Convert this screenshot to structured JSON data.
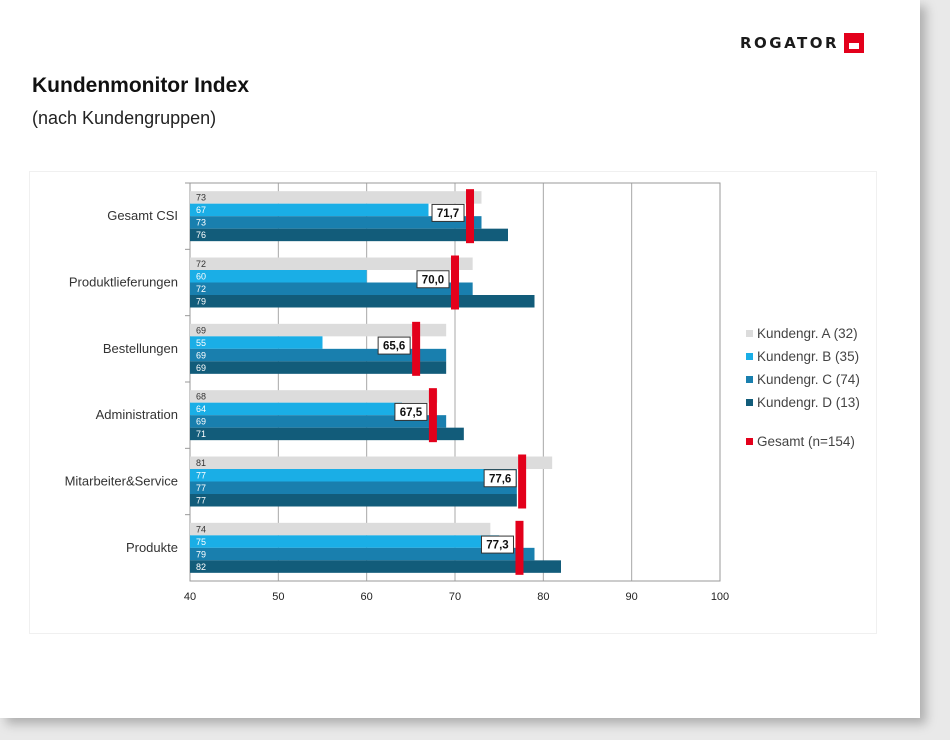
{
  "logo": {
    "text": "ROGATOR"
  },
  "title": "Kundenmonitor Index",
  "subtitle": "(nach Kundengruppen)",
  "colors": {
    "groupA": "#dcdcdc",
    "groupB": "#1aaee6",
    "groupC": "#197fae",
    "groupD": "#125c7a",
    "gesamt": "#e3001b"
  },
  "chart_data": {
    "type": "bar",
    "orientation": "horizontal",
    "categories": [
      "Gesamt CSI",
      "Produktlieferungen",
      "Bestellungen",
      "Administration",
      "Mitarbeiter&Service",
      "Produkte"
    ],
    "series": [
      {
        "name": "Kundengr. A (32)",
        "values": [
          73,
          72,
          69,
          68,
          81,
          74
        ],
        "labels": [
          "73",
          "72",
          "69",
          "68",
          "81",
          "74"
        ]
      },
      {
        "name": "Kundengr. B (35)",
        "values": [
          67,
          60,
          55,
          64,
          77,
          75
        ],
        "labels": [
          "67",
          "60",
          "55",
          "64",
          "77",
          "75"
        ]
      },
      {
        "name": "Kundengr. C (74)",
        "values": [
          73,
          72,
          69,
          69,
          77,
          79
        ],
        "labels": [
          "73",
          "72",
          "69",
          "69",
          "77",
          "79"
        ]
      },
      {
        "name": "Kundengr. D (13)",
        "values": [
          76,
          79,
          69,
          71,
          77,
          82
        ],
        "labels": [
          "76",
          "79",
          "69",
          "71",
          "77",
          "82"
        ]
      }
    ],
    "gesamt": {
      "name": "Gesamt (n=154)",
      "values": [
        71.7,
        70.0,
        65.6,
        67.5,
        77.6,
        77.3
      ],
      "labels": [
        "71,7",
        "70,0",
        "65,6",
        "67,5",
        "77,6",
        "77,3"
      ]
    },
    "xlim": [
      40,
      100
    ],
    "xticks": [
      "40",
      "50",
      "60",
      "70",
      "80",
      "90",
      "100"
    ],
    "grid": true,
    "legend_position": "right"
  }
}
